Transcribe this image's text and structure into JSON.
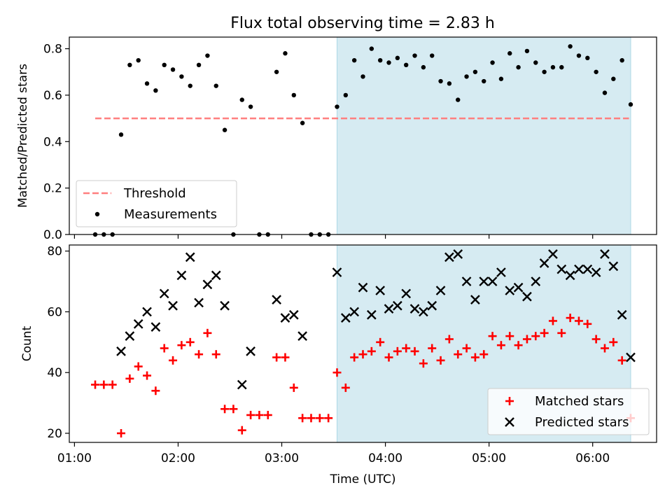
{
  "title": "Flux total observing time = 2.83 h",
  "xlabel": "Time (UTC)",
  "x_tick_labels": [
    "01:00",
    "02:00",
    "03:00",
    "04:00",
    "05:00",
    "06:00"
  ],
  "colors": {
    "shade": "#add8e6",
    "threshold": "#ff7f7f",
    "measurements": "#000000",
    "matched": "#ff0000",
    "predicted": "#000000"
  },
  "chart_data": [
    {
      "type": "scatter",
      "panel": "top",
      "ylabel": "Matched/Predicted stars",
      "ylim": [
        0,
        0.85
      ],
      "yticks": [
        0.0,
        0.2,
        0.4,
        0.6,
        0.8
      ],
      "ytick_labels": [
        "0.0",
        "0.2",
        "0.4",
        "0.6",
        "0.8"
      ],
      "xlim": [
        "00:57",
        "06:37"
      ],
      "xticks": [
        "01:00",
        "02:00",
        "03:00",
        "04:00",
        "05:00",
        "06:00"
      ],
      "grid": false,
      "legend_position": "lower-left",
      "shaded_region": {
        "from": "03:32",
        "to": "06:22"
      },
      "threshold": {
        "name": "Threshold",
        "value": 0.5,
        "from": "01:12",
        "to": "06:21",
        "style": "dashed"
      },
      "series": [
        {
          "name": "Measurements",
          "points": [
            [
              "01:12",
              0.0
            ],
            [
              "01:17",
              0.0
            ],
            [
              "01:22",
              0.0
            ],
            [
              "01:27",
              0.43
            ],
            [
              "01:32",
              0.73
            ],
            [
              "01:37",
              0.75
            ],
            [
              "01:42",
              0.65
            ],
            [
              "01:47",
              0.62
            ],
            [
              "01:52",
              0.73
            ],
            [
              "01:57",
              0.71
            ],
            [
              "02:02",
              0.68
            ],
            [
              "02:07",
              0.64
            ],
            [
              "02:12",
              0.73
            ],
            [
              "02:17",
              0.77
            ],
            [
              "02:22",
              0.64
            ],
            [
              "02:27",
              0.45
            ],
            [
              "02:32",
              0.0
            ],
            [
              "02:37",
              0.58
            ],
            [
              "02:42",
              0.55
            ],
            [
              "02:47",
              0.0
            ],
            [
              "02:52",
              0.0
            ],
            [
              "02:57",
              0.7
            ],
            [
              "03:02",
              0.78
            ],
            [
              "03:07",
              0.6
            ],
            [
              "03:12",
              0.48
            ],
            [
              "03:17",
              0.0
            ],
            [
              "03:22",
              0.0
            ],
            [
              "03:27",
              0.0
            ],
            [
              "03:32",
              0.55
            ],
            [
              "03:37",
              0.6
            ],
            [
              "03:42",
              0.75
            ],
            [
              "03:47",
              0.68
            ],
            [
              "03:52",
              0.8
            ],
            [
              "03:57",
              0.75
            ],
            [
              "04:02",
              0.74
            ],
            [
              "04:07",
              0.76
            ],
            [
              "04:12",
              0.73
            ],
            [
              "04:17",
              0.77
            ],
            [
              "04:22",
              0.72
            ],
            [
              "04:27",
              0.77
            ],
            [
              "04:32",
              0.66
            ],
            [
              "04:37",
              0.65
            ],
            [
              "04:42",
              0.58
            ],
            [
              "04:47",
              0.68
            ],
            [
              "04:52",
              0.7
            ],
            [
              "04:57",
              0.66
            ],
            [
              "05:02",
              0.74
            ],
            [
              "05:07",
              0.67
            ],
            [
              "05:12",
              0.78
            ],
            [
              "05:17",
              0.72
            ],
            [
              "05:22",
              0.79
            ],
            [
              "05:27",
              0.74
            ],
            [
              "05:32",
              0.7
            ],
            [
              "05:37",
              0.72
            ],
            [
              "05:42",
              0.72
            ],
            [
              "05:47",
              0.81
            ],
            [
              "05:52",
              0.77
            ],
            [
              "05:57",
              0.76
            ],
            [
              "06:02",
              0.7
            ],
            [
              "06:07",
              0.61
            ],
            [
              "06:12",
              0.67
            ],
            [
              "06:17",
              0.75
            ],
            [
              "06:22",
              0.56
            ]
          ]
        }
      ]
    },
    {
      "type": "scatter",
      "panel": "bottom",
      "ylabel": "Count",
      "ylim": [
        17,
        82
      ],
      "yticks": [
        20,
        40,
        60,
        80
      ],
      "ytick_labels": [
        "20",
        "40",
        "60",
        "80"
      ],
      "xlim": [
        "00:57",
        "06:37"
      ],
      "xticks": [
        "01:00",
        "02:00",
        "03:00",
        "04:00",
        "05:00",
        "06:00"
      ],
      "x_tick_labels": [
        "01:00",
        "02:00",
        "03:00",
        "04:00",
        "05:00",
        "06:00"
      ],
      "grid": false,
      "legend_position": "lower-right",
      "shaded_region": {
        "from": "03:32",
        "to": "06:22"
      },
      "series": [
        {
          "name": "Matched stars",
          "marker": "plus",
          "points": [
            [
              "01:12",
              36
            ],
            [
              "01:17",
              36
            ],
            [
              "01:22",
              36
            ],
            [
              "01:27",
              20
            ],
            [
              "01:32",
              38
            ],
            [
              "01:37",
              42
            ],
            [
              "01:42",
              39
            ],
            [
              "01:47",
              34
            ],
            [
              "01:52",
              48
            ],
            [
              "01:57",
              44
            ],
            [
              "02:02",
              49
            ],
            [
              "02:07",
              50
            ],
            [
              "02:12",
              46
            ],
            [
              "02:17",
              53
            ],
            [
              "02:22",
              46
            ],
            [
              "02:27",
              28
            ],
            [
              "02:32",
              28
            ],
            [
              "02:37",
              21
            ],
            [
              "02:42",
              26
            ],
            [
              "02:47",
              26
            ],
            [
              "02:52",
              26
            ],
            [
              "02:57",
              45
            ],
            [
              "03:02",
              45
            ],
            [
              "03:07",
              35
            ],
            [
              "03:12",
              25
            ],
            [
              "03:17",
              25
            ],
            [
              "03:22",
              25
            ],
            [
              "03:27",
              25
            ],
            [
              "03:32",
              40
            ],
            [
              "03:37",
              35
            ],
            [
              "03:42",
              45
            ],
            [
              "03:47",
              46
            ],
            [
              "03:52",
              47
            ],
            [
              "03:57",
              50
            ],
            [
              "04:02",
              45
            ],
            [
              "04:07",
              47
            ],
            [
              "04:12",
              48
            ],
            [
              "04:17",
              47
            ],
            [
              "04:22",
              43
            ],
            [
              "04:27",
              48
            ],
            [
              "04:32",
              44
            ],
            [
              "04:37",
              51
            ],
            [
              "04:42",
              46
            ],
            [
              "04:47",
              48
            ],
            [
              "04:52",
              45
            ],
            [
              "04:57",
              46
            ],
            [
              "05:02",
              52
            ],
            [
              "05:07",
              49
            ],
            [
              "05:12",
              52
            ],
            [
              "05:17",
              49
            ],
            [
              "05:22",
              51
            ],
            [
              "05:27",
              52
            ],
            [
              "05:32",
              53
            ],
            [
              "05:37",
              57
            ],
            [
              "05:42",
              53
            ],
            [
              "05:47",
              58
            ],
            [
              "05:52",
              57
            ],
            [
              "05:57",
              56
            ],
            [
              "06:02",
              51
            ],
            [
              "06:07",
              48
            ],
            [
              "06:12",
              50
            ],
            [
              "06:17",
              44
            ],
            [
              "06:22",
              25
            ]
          ]
        },
        {
          "name": "Predicted stars",
          "marker": "x",
          "points": [
            [
              "01:27",
              47
            ],
            [
              "01:32",
              52
            ],
            [
              "01:37",
              56
            ],
            [
              "01:42",
              60
            ],
            [
              "01:47",
              55
            ],
            [
              "01:52",
              66
            ],
            [
              "01:57",
              62
            ],
            [
              "02:02",
              72
            ],
            [
              "02:07",
              78
            ],
            [
              "02:12",
              63
            ],
            [
              "02:17",
              69
            ],
            [
              "02:22",
              72
            ],
            [
              "02:27",
              62
            ],
            [
              "02:37",
              36
            ],
            [
              "02:42",
              47
            ],
            [
              "02:57",
              64
            ],
            [
              "03:02",
              58
            ],
            [
              "03:07",
              59
            ],
            [
              "03:12",
              52
            ],
            [
              "03:32",
              73
            ],
            [
              "03:37",
              58
            ],
            [
              "03:42",
              60
            ],
            [
              "03:47",
              68
            ],
            [
              "03:52",
              59
            ],
            [
              "03:57",
              67
            ],
            [
              "04:02",
              61
            ],
            [
              "04:07",
              62
            ],
            [
              "04:12",
              66
            ],
            [
              "04:17",
              61
            ],
            [
              "04:22",
              60
            ],
            [
              "04:27",
              62
            ],
            [
              "04:32",
              67
            ],
            [
              "04:37",
              78
            ],
            [
              "04:42",
              79
            ],
            [
              "04:47",
              70
            ],
            [
              "04:52",
              64
            ],
            [
              "04:57",
              70
            ],
            [
              "05:02",
              70
            ],
            [
              "05:07",
              73
            ],
            [
              "05:12",
              67
            ],
            [
              "05:17",
              68
            ],
            [
              "05:22",
              65
            ],
            [
              "05:27",
              70
            ],
            [
              "05:32",
              76
            ],
            [
              "05:37",
              79
            ],
            [
              "05:42",
              74
            ],
            [
              "05:47",
              72
            ],
            [
              "05:52",
              74
            ],
            [
              "05:57",
              74
            ],
            [
              "06:02",
              73
            ],
            [
              "06:07",
              79
            ],
            [
              "06:12",
              75
            ],
            [
              "06:17",
              59
            ],
            [
              "06:22",
              45
            ]
          ]
        }
      ]
    }
  ]
}
